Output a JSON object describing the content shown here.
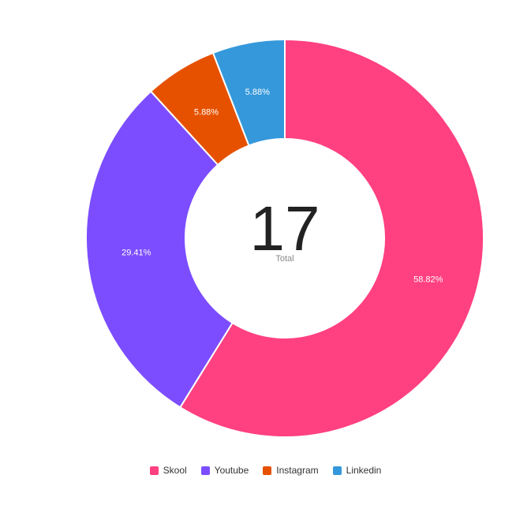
{
  "chart_data": {
    "type": "pie",
    "total": {
      "value": "17",
      "label": "Total"
    },
    "series": [
      {
        "name": "Skool",
        "value": 10,
        "percent_label": "58.82%",
        "color": "#FF4081"
      },
      {
        "name": "Youtube",
        "value": 5,
        "percent_label": "29.41%",
        "color": "#7C4DFF"
      },
      {
        "name": "Instagram",
        "value": 1,
        "percent_label": "5.88%",
        "color": "#E65100"
      },
      {
        "name": "Linkedin",
        "value": 1,
        "percent_label": "5.88%",
        "color": "#3498DB"
      }
    ],
    "legend_position": "bottom"
  }
}
